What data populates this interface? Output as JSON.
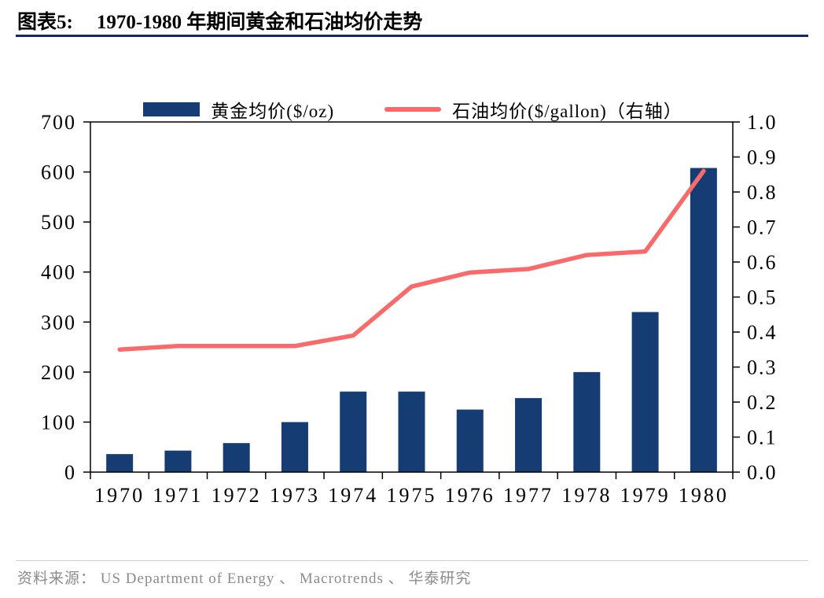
{
  "header": {
    "label": "图表5:",
    "title": "1970-1980 年期间黄金和石油均价走势"
  },
  "footer": {
    "source": "资料来源： US Department of Energy 、 Macrotrends 、 华泰研究"
  },
  "colors": {
    "bar": "#153d73",
    "line": "#fa6a6a",
    "title_rule": "#12286b",
    "footer_rule": "#cfcfcf",
    "source_text": "#8c8c8c"
  },
  "chart_data": {
    "type": "combo",
    "title": "1970-1980 年期间黄金和石油均价走势",
    "categories": [
      "1970",
      "1971",
      "1972",
      "1973",
      "1974",
      "1975",
      "1976",
      "1977",
      "1978",
      "1979",
      "1980"
    ],
    "series": [
      {
        "name": "黄金均价($/oz)",
        "type": "bar",
        "axis": "left",
        "color": "#153d73",
        "values": [
          36,
          43,
          58,
          100,
          161,
          161,
          125,
          148,
          200,
          320,
          608
        ]
      },
      {
        "name": "石油均价($/gallon)（右轴）",
        "type": "line",
        "axis": "right",
        "color": "#fa6a6a",
        "values": [
          0.35,
          0.36,
          0.36,
          0.36,
          0.39,
          0.53,
          0.57,
          0.58,
          0.62,
          0.63,
          0.86
        ]
      }
    ],
    "left_axis": {
      "min": 0,
      "max": 700,
      "step": 100,
      "ticks": [
        "0",
        "100",
        "200",
        "300",
        "400",
        "500",
        "600",
        "700"
      ]
    },
    "right_axis": {
      "min": 0,
      "max": 1.0,
      "step": 0.1,
      "ticks": [
        "0.0",
        "0.1",
        "0.2",
        "0.3",
        "0.4",
        "0.5",
        "0.6",
        "0.7",
        "0.8",
        "0.9",
        "1.0"
      ]
    },
    "legend": [
      {
        "label": "黄金均价($/oz)",
        "swatch": "bar",
        "color": "#153d73"
      },
      {
        "label": "石油均价($/gallon)（右轴）",
        "swatch": "line",
        "color": "#fa6a6a"
      }
    ],
    "grid": false,
    "legend_position": "top"
  }
}
